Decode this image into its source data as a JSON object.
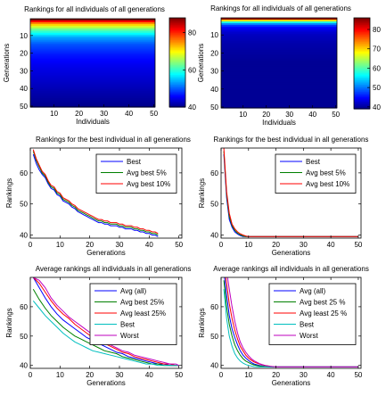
{
  "chart_data": [
    {
      "type": "heatmap",
      "title": "Rankings for all individuals of all generations",
      "xlabel": "Individuals",
      "ylabel": "Generations",
      "xlim": [
        0.5,
        50.5
      ],
      "ylim": [
        0.5,
        50.5
      ],
      "xticks": [
        10,
        20,
        30,
        40,
        50
      ],
      "yticks": [
        10,
        20,
        30,
        40,
        50
      ],
      "colorbar": {
        "min": 40,
        "max": 88,
        "ticks": [
          40,
          60,
          80
        ]
      },
      "color_by_generation": [
        88,
        82,
        76,
        72,
        68,
        65,
        62,
        60,
        58,
        56,
        54,
        53,
        52,
        51,
        50,
        49.5,
        49,
        48.5,
        48,
        47.5,
        47,
        46.7,
        46.4,
        46.1,
        45.8,
        45.5,
        45.2,
        45,
        44.8,
        44.6,
        44.4,
        44.2,
        44,
        43.8,
        43.6,
        43.4,
        43.2,
        43,
        42.8,
        42.6,
        42.4,
        42.2,
        42,
        41.8,
        41.6,
        41.4,
        41.2,
        41,
        40.8,
        40.6
      ]
    },
    {
      "type": "heatmap",
      "title": "Rankings for all individuals of all generations",
      "xlabel": "Individuals",
      "ylabel": "Generations",
      "xlim": [
        0.5,
        50.5
      ],
      "ylim": [
        0.5,
        50.5
      ],
      "xticks": [
        10,
        20,
        30,
        40,
        50
      ],
      "yticks": [
        10,
        20,
        30,
        40,
        50
      ],
      "colorbar": {
        "min": 39,
        "max": 86,
        "ticks": [
          40,
          50,
          60,
          70,
          80
        ]
      },
      "color_by_generation": [
        85,
        70,
        58,
        51,
        47,
        45,
        44,
        43,
        42.5,
        42,
        41.8,
        41.6,
        41.4,
        41.2,
        41,
        40.9,
        40.8,
        40.7,
        40.6,
        40.5,
        40.4,
        40.3,
        40.2,
        40.1,
        40,
        40,
        40,
        40,
        40,
        40,
        40,
        40,
        40,
        40,
        40,
        40,
        40,
        40,
        40,
        40,
        40,
        40,
        40,
        40,
        40,
        40,
        40,
        40,
        40,
        40
      ]
    },
    {
      "type": "line",
      "title": "Rankings for the best individual in all generations",
      "xlabel": "Generations",
      "ylabel": "Rankings",
      "xlim": [
        0,
        51
      ],
      "ylim": [
        39,
        68
      ],
      "xticks": [
        0,
        10,
        20,
        30,
        40,
        50
      ],
      "yticks": [
        40,
        50,
        60
      ],
      "legend_position": "top-right",
      "x": [
        1,
        2,
        3,
        4,
        5,
        6,
        7,
        8,
        9,
        10,
        11,
        12,
        13,
        14,
        15,
        16,
        17,
        18,
        19,
        20,
        21,
        22,
        23,
        24,
        25,
        26,
        27,
        28,
        29,
        30,
        31,
        32,
        33,
        34,
        35,
        36,
        37,
        38,
        39,
        40,
        41,
        42,
        43
      ],
      "series": [
        {
          "name": "Best",
          "color": "#0000ff",
          "values": [
            66,
            63,
            61,
            59.5,
            58.5,
            56.5,
            55,
            54.5,
            53,
            52.5,
            51,
            50.5,
            50,
            49,
            48.5,
            47.5,
            47,
            46.5,
            46,
            45.5,
            45,
            44.5,
            44,
            44,
            43.5,
            43.5,
            43,
            43,
            43,
            42.5,
            42.5,
            42,
            42,
            42,
            41.5,
            41.5,
            41,
            41,
            40.5,
            40.5,
            40,
            40,
            39.5
          ]
        },
        {
          "name": "Avg best 5%",
          "color": "#008000",
          "values": [
            67,
            64,
            62,
            60,
            59,
            57,
            55.5,
            55,
            53.5,
            53,
            51.5,
            51,
            50.5,
            49.5,
            49,
            48,
            47.5,
            47,
            46.5,
            46,
            45.5,
            45,
            44.5,
            44.5,
            44,
            44,
            43.5,
            43.5,
            43.5,
            43,
            43,
            42.5,
            42.5,
            42.5,
            42,
            42,
            41.5,
            41.5,
            41,
            41,
            40.5,
            40.5,
            40
          ]
        },
        {
          "name": "Avg best 10%",
          "color": "#ff0000",
          "values": [
            67.5,
            64.5,
            62.5,
            60.5,
            59.5,
            57.5,
            56,
            55.5,
            54,
            53.5,
            52,
            51.5,
            51,
            50,
            49.5,
            48.5,
            48,
            47.5,
            47,
            46.5,
            46,
            45.5,
            45,
            45,
            44.5,
            44.5,
            44,
            44,
            44,
            43.5,
            43.5,
            43,
            43,
            43,
            42.5,
            42.5,
            42,
            42,
            41.5,
            41.5,
            41,
            41,
            40.5
          ]
        }
      ]
    },
    {
      "type": "line",
      "title": "Rankings for the best individual in all generations",
      "xlabel": "Generations",
      "ylabel": "Rankings",
      "xlim": [
        0,
        51
      ],
      "ylim": [
        39,
        68
      ],
      "xticks": [
        0,
        10,
        20,
        30,
        40,
        50
      ],
      "yticks": [
        40,
        50,
        60
      ],
      "legend_position": "top-right",
      "x": [
        1,
        2,
        3,
        4,
        5,
        6,
        7,
        8,
        9,
        10,
        12,
        15,
        20,
        30,
        40,
        50
      ],
      "series": [
        {
          "name": "Best",
          "color": "#0000ff",
          "values": [
            66,
            52,
            45,
            42.5,
            41,
            40.3,
            39.8,
            39.5,
            39.5,
            39.5,
            39.5,
            39.5,
            39.5,
            39.5,
            39.5,
            39.5
          ]
        },
        {
          "name": "Avg best 5%",
          "color": "#008000",
          "values": [
            67,
            53,
            46,
            43,
            41.5,
            40.6,
            40.1,
            39.7,
            39.5,
            39.5,
            39.5,
            39.5,
            39.5,
            39.5,
            39.5,
            39.5
          ]
        },
        {
          "name": "Avg best 10%",
          "color": "#ff0000",
          "values": [
            68,
            54,
            47,
            43.5,
            42,
            41,
            40.4,
            40,
            39.7,
            39.5,
            39.5,
            39.5,
            39.5,
            39.5,
            39.5,
            39.5
          ]
        }
      ]
    },
    {
      "type": "line",
      "title": "Average rankings all individuals in all generations",
      "xlabel": "Generations",
      "ylabel": "Rankings",
      "xlim": [
        0,
        51
      ],
      "ylim": [
        39,
        70
      ],
      "xticks": [
        0,
        10,
        20,
        30,
        40,
        50
      ],
      "yticks": [
        40,
        50,
        60
      ],
      "legend_position": "top-right",
      "x": [
        1,
        3,
        5,
        7,
        9,
        11,
        13,
        15,
        17,
        19,
        21,
        23,
        25,
        27,
        29,
        31,
        33,
        35,
        37,
        39,
        41,
        43,
        45,
        47,
        49,
        50
      ],
      "series": [
        {
          "name": "Avg (all)",
          "color": "#0000ff",
          "values": [
            70,
            66.5,
            63,
            60,
            57.5,
            55.5,
            54,
            52.5,
            51,
            49.5,
            48.5,
            47.5,
            46.5,
            45.5,
            44.5,
            44,
            43,
            42.5,
            42,
            41.5,
            41,
            40.5,
            40.5,
            40,
            40,
            40
          ]
        },
        {
          "name": "Avg best 25%",
          "color": "#008000",
          "values": [
            66,
            62.5,
            59.5,
            57,
            55,
            53,
            51.5,
            50,
            49,
            48,
            47,
            46,
            45,
            44.5,
            44,
            43,
            42.5,
            42,
            41.5,
            41,
            40.5,
            40.5,
            40,
            40,
            40,
            40
          ]
        },
        {
          "name": "Avg least 25%",
          "color": "#ff0000",
          "values": [
            70,
            68,
            65,
            62,
            59.5,
            57.5,
            56,
            54,
            52.5,
            51,
            49.5,
            48.5,
            47.5,
            46.5,
            45.5,
            44.5,
            44,
            43,
            42.5,
            42,
            41.5,
            41,
            40.5,
            40.5,
            40,
            40
          ]
        },
        {
          "name": "Best",
          "color": "#00bfbf",
          "values": [
            62,
            59.5,
            57,
            55,
            53,
            51,
            49.5,
            48,
            47,
            46,
            45,
            44.5,
            44,
            43.5,
            43,
            42.5,
            42,
            41.5,
            41,
            40.5,
            40.5,
            40,
            40,
            40,
            40,
            40
          ]
        },
        {
          "name": "Worst",
          "color": "#bf00bf",
          "values": [
            70,
            69,
            66.5,
            63,
            60.5,
            58.5,
            56.5,
            55,
            53.5,
            52,
            50.5,
            49,
            48,
            47,
            46,
            45,
            44.5,
            43.5,
            43,
            42.5,
            42,
            41.5,
            41,
            40.5,
            40.5,
            40
          ]
        }
      ]
    },
    {
      "type": "line",
      "title": "Average rankings all individuals in all generations",
      "xlabel": "Generations",
      "ylabel": "Rankings",
      "xlim": [
        0,
        51
      ],
      "ylim": [
        39,
        70
      ],
      "xticks": [
        0,
        10,
        20,
        30,
        40,
        50
      ],
      "yticks": [
        40,
        50,
        60
      ],
      "legend_position": "top-right",
      "x": [
        1,
        2,
        3,
        4,
        5,
        6,
        7,
        8,
        9,
        10,
        11,
        12,
        14,
        16,
        18,
        20,
        25,
        30,
        40,
        50
      ],
      "series": [
        {
          "name": "Avg (all)",
          "color": "#0000ff",
          "values": [
            72,
            64,
            57,
            52.5,
            49.5,
            47,
            45,
            43.5,
            42.5,
            41.7,
            41,
            40.5,
            40,
            39.7,
            39.5,
            39.5,
            39.5,
            39.5,
            39.5,
            39.5
          ]
        },
        {
          "name": "Avg best 25 %",
          "color": "#008000",
          "values": [
            69,
            60,
            54,
            50,
            47,
            45,
            43.5,
            42.3,
            41.5,
            41,
            40.5,
            40.2,
            39.8,
            39.6,
            39.5,
            39.5,
            39.5,
            39.5,
            39.5,
            39.5
          ]
        },
        {
          "name": "Avg least 25 %",
          "color": "#ff0000",
          "values": [
            74,
            68,
            61,
            56,
            52,
            49,
            46.5,
            45,
            43.5,
            42.5,
            41.8,
            41.2,
            40.5,
            40,
            39.7,
            39.5,
            39.5,
            39.5,
            39.5,
            39.5
          ]
        },
        {
          "name": "Best",
          "color": "#00bfbf",
          "values": [
            66,
            56,
            50,
            46.5,
            44,
            42.5,
            41.5,
            40.8,
            40.3,
            40,
            39.8,
            39.6,
            39.5,
            39.5,
            39.5,
            39.5,
            39.5,
            39.5,
            39.5,
            39.5
          ]
        },
        {
          "name": "Worst",
          "color": "#bf00bf",
          "values": [
            75,
            72,
            66,
            60,
            55,
            51,
            48,
            46,
            44.5,
            43.3,
            42.3,
            41.6,
            40.6,
            40,
            39.7,
            39.5,
            39.5,
            39.5,
            39.5,
            39.5
          ]
        }
      ]
    }
  ]
}
